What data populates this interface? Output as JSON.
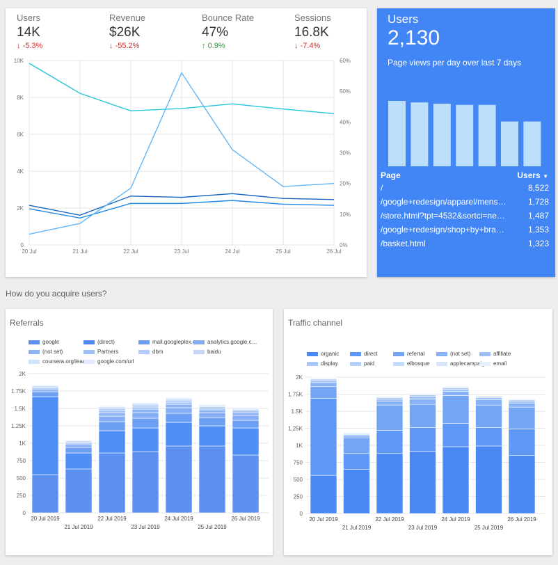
{
  "kpis": [
    {
      "label": "Users",
      "value": "14K",
      "delta": "-5.3%",
      "direction": "down"
    },
    {
      "label": "Revenue",
      "value": "$26K",
      "delta": "-55.2%",
      "direction": "down"
    },
    {
      "label": "Bounce Rate",
      "value": "47%",
      "delta": "0.9%",
      "direction": "up"
    },
    {
      "label": "Sessions",
      "value": "16.8K",
      "delta": "-7.4%",
      "direction": "down"
    }
  ],
  "arrows": {
    "down": "↓",
    "up": "↑"
  },
  "overview_chart": {
    "chart_data": {
      "type": "line",
      "x": [
        "20 Jul",
        "21 Jul",
        "22 Jul",
        "23 Jul",
        "24 Jul",
        "25 Jul",
        "26 Jul"
      ],
      "left_ticks": [
        "0",
        "2K",
        "4K",
        "6K",
        "8K",
        "10K"
      ],
      "right_ticks": [
        "0%",
        "10%",
        "20%",
        "30%",
        "40%",
        "50%",
        "60%"
      ],
      "ylim": [
        0,
        10000
      ],
      "y2lim": [
        0,
        60
      ],
      "series": [
        {
          "axis": "left",
          "color": "#26c6da",
          "values": [
            9850,
            8220,
            7270,
            7400,
            7650,
            7370,
            7120
          ]
        },
        {
          "axis": "left",
          "color": "#1565c0",
          "values": [
            2150,
            1610,
            2650,
            2580,
            2780,
            2520,
            2460
          ]
        },
        {
          "axis": "left",
          "color": "#1e88e5",
          "values": [
            1960,
            1460,
            2250,
            2250,
            2410,
            2210,
            2150
          ]
        },
        {
          "axis": "right",
          "color": "#64b5f6",
          "values": [
            3.5,
            7,
            18.5,
            56,
            31,
            19,
            20
          ]
        }
      ],
      "grid": true
    }
  },
  "users_card": {
    "title": "Users",
    "value": "2,130",
    "subtitle": "Page views per day over last 7 days",
    "chart_data": {
      "type": "bar",
      "values": [
        2130,
        2080,
        2040,
        2000,
        2000,
        1460,
        1460
      ]
    },
    "table": {
      "col_page": "Page",
      "col_users": "Users",
      "sort_icon": "▼",
      "rows": [
        {
          "page": "/",
          "users": "8,522"
        },
        {
          "page": "/google+redesign/apparel/mens…",
          "users": "1,728"
        },
        {
          "page": "/store.html?tpt=4532&sortci=ne…",
          "users": "1,487"
        },
        {
          "page": "/google+redesign/shop+by+bra…",
          "users": "1,353"
        },
        {
          "page": "/basket.html",
          "users": "1,323"
        }
      ]
    }
  },
  "section_title": "How do you acquire users?",
  "referrals": {
    "title": "Referrals",
    "legend": [
      {
        "label": "google",
        "color": "#5b8ff0"
      },
      {
        "label": "(direct)",
        "color": "#4f8ef5"
      },
      {
        "label": "mall.googleplex.co…",
        "color": "#6c9ff2"
      },
      {
        "label": "analytics.google.c…",
        "color": "#85aef4"
      },
      {
        "label": "(not set)",
        "color": "#8fb4f5"
      },
      {
        "label": "Partners",
        "color": "#9fc0f6"
      },
      {
        "label": "dbm",
        "color": "#b0ccf8"
      },
      {
        "label": "baidu",
        "color": "#c1d7f9"
      },
      {
        "label": "coursera.org/lear…",
        "color": "#d2e2fb"
      },
      {
        "label": "google.com/url",
        "color": "#e3edfc"
      }
    ],
    "chart_data": {
      "type": "bar",
      "stacked": true,
      "categories": [
        "20 Jul 2019",
        "21 Jul 2019",
        "22 Jul 2019",
        "23 Jul 2019",
        "24 Jul 2019",
        "25 Jul 2019",
        "26 Jul 2019"
      ],
      "y_ticks": [
        "0",
        "250",
        "500",
        "750",
        "1K",
        "1.25K",
        "1.5K",
        "1.75K",
        "2K"
      ],
      "ylim": [
        0,
        2000
      ],
      "segments": [
        [
          550,
          1120,
          70,
          30,
          20,
          15,
          15,
          10,
          10,
          5
        ],
        [
          630,
          230,
          80,
          40,
          20,
          15,
          15,
          10,
          5,
          5
        ],
        [
          860,
          320,
          130,
          80,
          50,
          30,
          30,
          20,
          10,
          10
        ],
        [
          880,
          340,
          140,
          80,
          50,
          30,
          30,
          20,
          10,
          10
        ],
        [
          960,
          340,
          130,
          80,
          50,
          30,
          30,
          20,
          10,
          10
        ],
        [
          960,
          290,
          120,
          70,
          40,
          25,
          20,
          15,
          10,
          10
        ],
        [
          830,
          390,
          110,
          70,
          40,
          25,
          20,
          15,
          10,
          10
        ]
      ]
    }
  },
  "channel": {
    "title": "Traffic channel",
    "legend": [
      {
        "label": "organic",
        "color": "#4a89f3"
      },
      {
        "label": "direct",
        "color": "#5f97f4"
      },
      {
        "label": "referral",
        "color": "#74a5f5"
      },
      {
        "label": "(not set)",
        "color": "#88b2f6"
      },
      {
        "label": "affiliate",
        "color": "#9cbff7"
      },
      {
        "label": "display",
        "color": "#a9c8f8"
      },
      {
        "label": "paid",
        "color": "#b6d1f9"
      },
      {
        "label": "elbosque",
        "color": "#c6dbfa"
      },
      {
        "label": "applecampaign",
        "color": "#d6e5fb"
      },
      {
        "label": "email",
        "color": "#e6effd"
      }
    ],
    "chart_data": {
      "type": "bar",
      "stacked": true,
      "categories": [
        "20 Jul 2019",
        "21 Jul 2019",
        "22 Jul 2019",
        "23 Jul 2019",
        "24 Jul 2019",
        "25 Jul 2019",
        "26 Jul 2019"
      ],
      "y_ticks": [
        "0",
        "250",
        "500",
        "750",
        "1K",
        "1.25K",
        "1.5K",
        "1.75K",
        "2K"
      ],
      "ylim": [
        0,
        2000
      ],
      "segments": [
        [
          560,
          1130,
          170,
          60,
          30,
          20,
          10,
          10,
          5,
          5
        ],
        [
          650,
          230,
          230,
          30,
          20,
          10,
          10,
          5,
          5,
          5
        ],
        [
          880,
          340,
          370,
          60,
          30,
          20,
          10,
          10,
          5,
          5
        ],
        [
          910,
          350,
          340,
          80,
          40,
          20,
          10,
          10,
          5,
          5
        ],
        [
          980,
          340,
          410,
          60,
          30,
          20,
          10,
          10,
          5,
          5
        ],
        [
          990,
          270,
          330,
          80,
          30,
          15,
          10,
          5,
          5,
          5
        ],
        [
          850,
          390,
          320,
          60,
          30,
          15,
          10,
          5,
          5,
          5
        ]
      ]
    }
  }
}
